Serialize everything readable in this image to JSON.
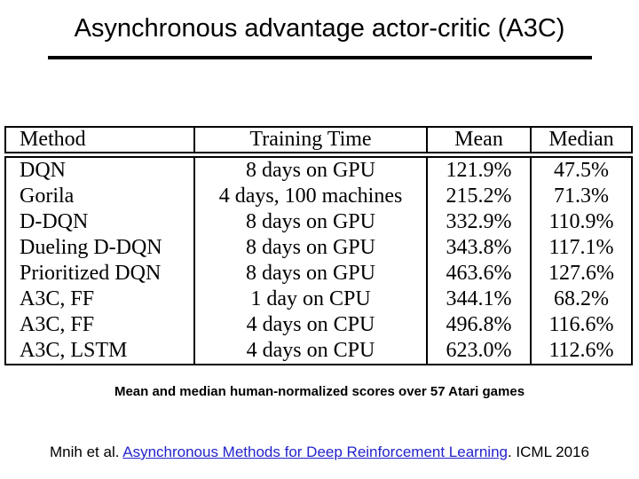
{
  "title": "Asynchronous advantage actor-critic (A3C)",
  "table": {
    "headers": [
      "Method",
      "Training Time",
      "Mean",
      "Median"
    ],
    "rows": [
      {
        "method": "DQN",
        "training_time": "8 days on GPU",
        "mean": "121.9%",
        "median": "47.5%"
      },
      {
        "method": "Gorila",
        "training_time": "4 days, 100 machines",
        "mean": "215.2%",
        "median": "71.3%"
      },
      {
        "method": "D-DQN",
        "training_time": "8 days on GPU",
        "mean": "332.9%",
        "median": "110.9%"
      },
      {
        "method": "Dueling D-DQN",
        "training_time": "8 days on GPU",
        "mean": "343.8%",
        "median": "117.1%"
      },
      {
        "method": "Prioritized DQN",
        "training_time": "8 days on GPU",
        "mean": "463.6%",
        "median": "127.6%"
      },
      {
        "method": "A3C, FF",
        "training_time": "1 day on CPU",
        "mean": "344.1%",
        "median": "68.2%"
      },
      {
        "method": "A3C, FF",
        "training_time": "4 days on CPU",
        "mean": "496.8%",
        "median": "116.6%"
      },
      {
        "method": "A3C, LSTM",
        "training_time": "4 days on CPU",
        "mean": "623.0%",
        "median": "112.6%"
      }
    ]
  },
  "caption": "Mean and median human-normalized scores over 57 Atari games",
  "citation": {
    "prefix": "Mnih et al. ",
    "link_text": "Asynchronous Methods for Deep Reinforcement Learning",
    "suffix": ". ICML 2016"
  },
  "colors": {
    "background": "#ffffff",
    "text": "#000000",
    "link_blue": "#2222cc"
  }
}
